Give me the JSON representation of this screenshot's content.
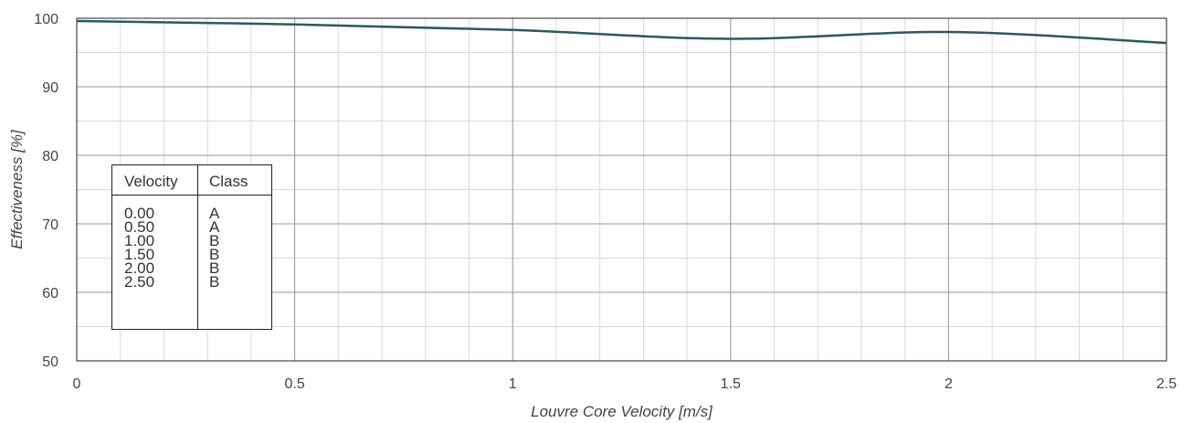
{
  "chart_data": {
    "type": "line",
    "xlabel": "Louvre Core Velocity [m/s]",
    "ylabel": "Effectiveness [%]",
    "xlim": [
      0,
      2.5
    ],
    "ylim": [
      50,
      100
    ],
    "xticks": [
      0,
      0.5,
      1,
      1.5,
      2,
      2.5
    ],
    "xtick_labels": [
      "0",
      "0.5",
      "1",
      "1.5",
      "2",
      "2.5"
    ],
    "yticks": [
      50,
      60,
      70,
      80,
      90,
      100
    ],
    "ytick_labels": [
      "50",
      "60",
      "70",
      "80",
      "90",
      "100"
    ],
    "grid": true,
    "x_minor_step": 0.1,
    "y_minor_step": 5,
    "series": [
      {
        "color": "#275a62",
        "x": [
          0,
          0.5,
          1.0,
          1.5,
          2.0,
          2.5
        ],
        "y": [
          99.6,
          99.1,
          98.3,
          97.0,
          98.0,
          96.4
        ]
      }
    ]
  },
  "legend_table": {
    "headers": [
      "Velocity",
      "Class"
    ],
    "rows": [
      [
        "0.00",
        "A"
      ],
      [
        "0.50",
        "A"
      ],
      [
        "1.00",
        "B"
      ],
      [
        "1.50",
        "B"
      ],
      [
        "2.00",
        "B"
      ],
      [
        "2.50",
        "B"
      ]
    ]
  }
}
